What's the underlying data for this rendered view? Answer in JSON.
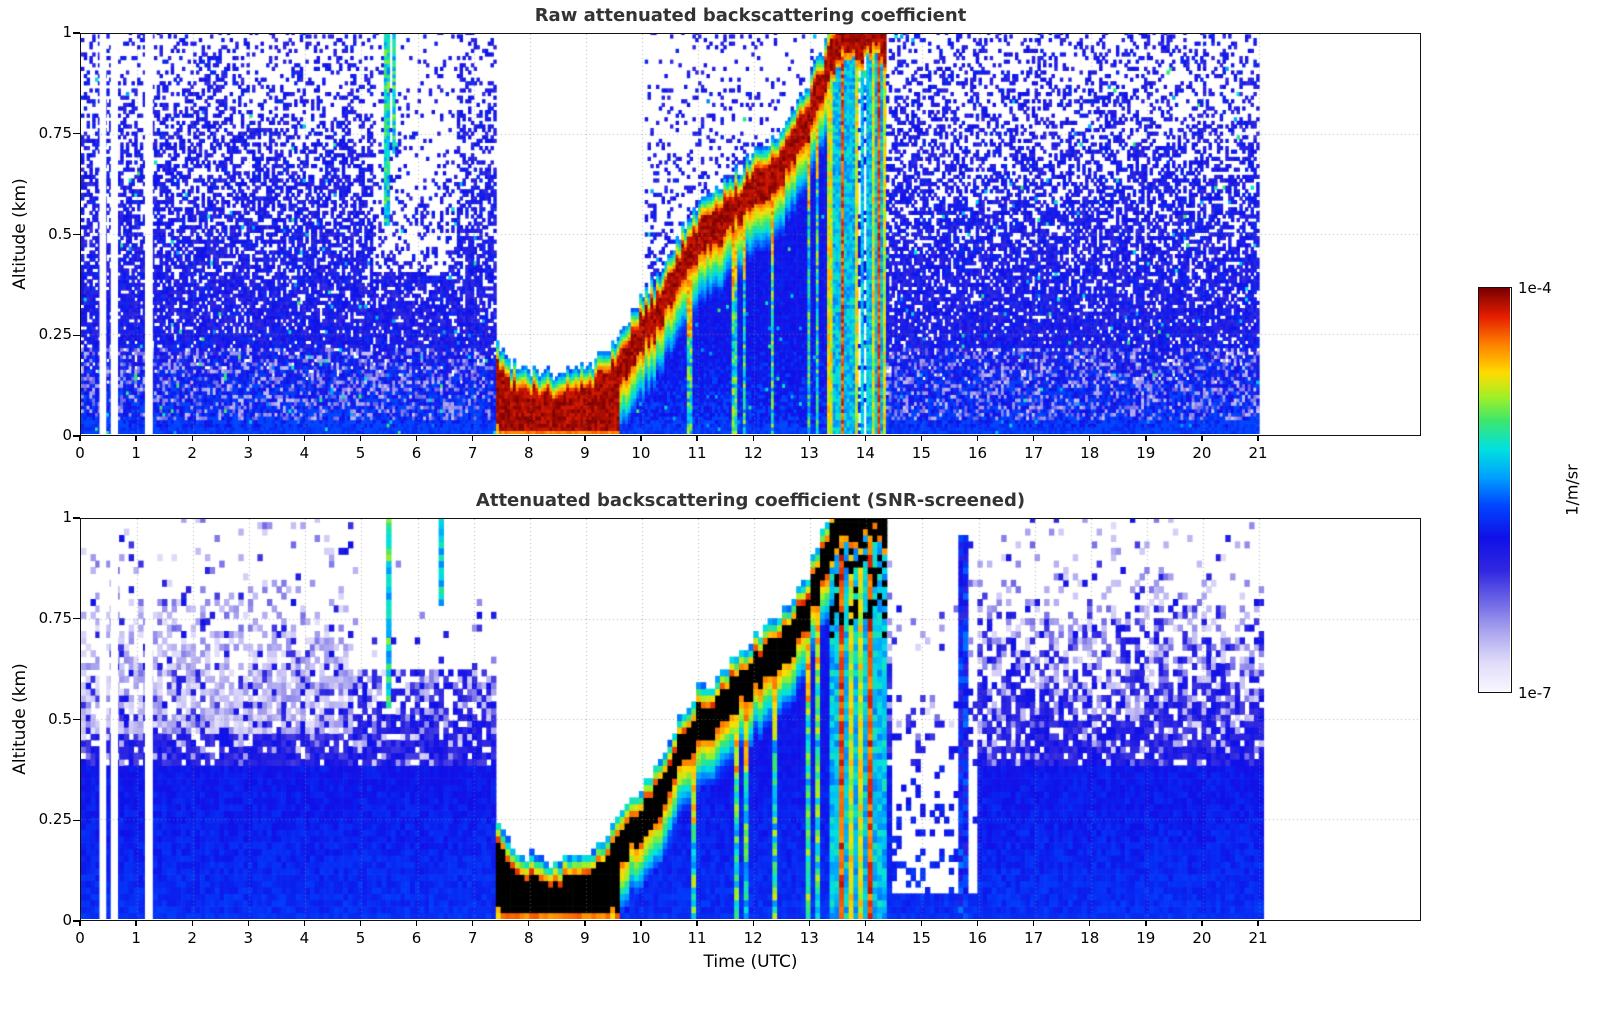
{
  "figure": {
    "background": "#ffffff"
  },
  "colorbar": {
    "max_label": "1e-4",
    "min_label": "1e-7",
    "units_label": "1/m/sr",
    "scale": "log"
  },
  "colormap_stops": [
    [
      0.0,
      "#f8f6ff"
    ],
    [
      0.07,
      "#e0dcfa"
    ],
    [
      0.14,
      "#b0aaf0"
    ],
    [
      0.22,
      "#7068e6"
    ],
    [
      0.3,
      "#3028e0"
    ],
    [
      0.38,
      "#1010e8"
    ],
    [
      0.46,
      "#0046ff"
    ],
    [
      0.53,
      "#00a0ff"
    ],
    [
      0.6,
      "#00e1e1"
    ],
    [
      0.67,
      "#3ce66e"
    ],
    [
      0.73,
      "#a0f028"
    ],
    [
      0.79,
      "#ffdc00"
    ],
    [
      0.86,
      "#ff8200"
    ],
    [
      0.93,
      "#e61e00"
    ],
    [
      1.0,
      "#7a0000"
    ]
  ],
  "chart_data": [
    {
      "type": "heatmap",
      "title": "Raw attenuated backscattering coefficient",
      "xlabel": "",
      "ylabel": "Altitude (km)",
      "x_ticks": [
        "0",
        "1",
        "2",
        "3",
        "4",
        "5",
        "6",
        "7",
        "8",
        "9",
        "10",
        "11",
        "12",
        "13",
        "14",
        "15",
        "16",
        "17",
        "18",
        "19",
        "20",
        "21"
      ],
      "y_ticks": [
        "0",
        "0.25",
        "0.5",
        "0.75",
        "1"
      ],
      "x_range_hours": [
        0,
        23.9
      ],
      "y_range_km": [
        0,
        1
      ],
      "value_scale": "log",
      "value_min": "1e-7",
      "value_max": "1e-4",
      "value_units": "1/m/sr",
      "grid": "dotted",
      "features": {
        "data_hours": 21,
        "gaps": [
          [
            0.33,
            0.45
          ],
          [
            0.53,
            0.66
          ],
          [
            1.14,
            1.28
          ]
        ],
        "cloud_path": [
          [
            7.35,
            0.16
          ],
          [
            7.6,
            0.1
          ],
          [
            8.0,
            0.075
          ],
          [
            8.5,
            0.065
          ],
          [
            9.0,
            0.09
          ],
          [
            9.4,
            0.14
          ],
          [
            9.8,
            0.22
          ],
          [
            10.2,
            0.3
          ],
          [
            10.6,
            0.4
          ],
          [
            11.0,
            0.5
          ],
          [
            11.3,
            0.52
          ],
          [
            11.6,
            0.57
          ],
          [
            12.0,
            0.62
          ],
          [
            12.3,
            0.66
          ],
          [
            12.6,
            0.7
          ],
          [
            12.9,
            0.78
          ],
          [
            13.1,
            0.85
          ],
          [
            13.35,
            0.95
          ],
          [
            13.6,
            1.02
          ],
          [
            13.85,
            0.99
          ],
          [
            14.1,
            1.04
          ],
          [
            14.35,
            0.97
          ]
        ],
        "cloud_time_range": [
          7.35,
          14.35
        ],
        "fog_until": 9.6,
        "full_attenuation_range": [
          7.35,
          10.05
        ],
        "precip_streaks": [
          {
            "t": 10.85,
            "w": 0.1
          },
          {
            "t": 11.62,
            "w": 0.08
          },
          {
            "t": 11.8,
            "w": 0.06
          },
          {
            "t": 12.32,
            "w": 0.05
          },
          {
            "t": 12.95,
            "w": 0.07
          },
          {
            "t": 13.12,
            "w": 0.06
          }
        ],
        "dense_band": [
          13.3,
          14.35
        ],
        "upper_streaks": [
          {
            "t": 5.42,
            "w": 0.09,
            "a0": 0.52
          },
          {
            "t": 5.56,
            "w": 0.05,
            "a0": 0.7
          }
        ]
      }
    },
    {
      "type": "heatmap",
      "title": "Attenuated backscattering coefficient (SNR-screened)",
      "xlabel": "Time (UTC)",
      "ylabel": "Altitude (km)",
      "x_ticks": [
        "0",
        "1",
        "2",
        "3",
        "4",
        "5",
        "6",
        "7",
        "8",
        "9",
        "10",
        "11",
        "12",
        "13",
        "14",
        "15",
        "16",
        "17",
        "18",
        "19",
        "20",
        "21"
      ],
      "y_ticks": [
        "0",
        "0.25",
        "0.5",
        "0.75",
        "1"
      ],
      "x_range_hours": [
        0,
        23.9
      ],
      "y_range_km": [
        0,
        1
      ],
      "value_scale": "log",
      "value_min": "1e-7",
      "value_max": "1e-4",
      "value_units": "1/m/sr",
      "grid": "dotted",
      "features": {
        "data_hours": 21,
        "gaps": [
          [
            0.33,
            0.45
          ],
          [
            0.53,
            0.66
          ],
          [
            1.14,
            1.28
          ]
        ],
        "cloud_path": [
          [
            7.35,
            0.16
          ],
          [
            7.6,
            0.1
          ],
          [
            8.0,
            0.075
          ],
          [
            8.5,
            0.065
          ],
          [
            9.0,
            0.09
          ],
          [
            9.4,
            0.14
          ],
          [
            9.8,
            0.22
          ],
          [
            10.2,
            0.3
          ],
          [
            10.6,
            0.4
          ],
          [
            11.0,
            0.5
          ],
          [
            11.3,
            0.52
          ],
          [
            11.6,
            0.57
          ],
          [
            12.0,
            0.62
          ],
          [
            12.3,
            0.66
          ],
          [
            12.6,
            0.7
          ],
          [
            12.9,
            0.78
          ],
          [
            13.1,
            0.85
          ],
          [
            13.35,
            0.95
          ],
          [
            13.6,
            1.02
          ],
          [
            13.85,
            0.99
          ],
          [
            14.1,
            1.04
          ],
          [
            14.35,
            0.97
          ]
        ],
        "cloud_time_range": [
          7.35,
          14.35
        ],
        "fog_until": 9.6,
        "full_attenuation_range": [
          7.35,
          10.05
        ],
        "precip_streaks": [
          {
            "t": 10.85,
            "w": 0.1
          },
          {
            "t": 11.62,
            "w": 0.08
          },
          {
            "t": 11.8,
            "w": 0.06
          },
          {
            "t": 12.32,
            "w": 0.05
          },
          {
            "t": 12.95,
            "w": 0.07
          },
          {
            "t": 13.12,
            "w": 0.06
          }
        ],
        "dense_band": [
          13.3,
          14.35
        ],
        "upper_streaks": [
          {
            "t": 5.42,
            "w": 0.09,
            "a0": 0.52
          },
          {
            "t": 5.56,
            "w": 0.05,
            "a0": 0.7
          },
          {
            "t": 6.36,
            "w": 0.11,
            "a0": 0.78
          }
        ],
        "post_gap": [
          14.4,
          15.9
        ],
        "post_streak": {
          "t": 15.7,
          "w": 0.14,
          "a1": 0.95
        },
        "early_light_band": {
          "t_max": 4.8,
          "a": [
            0.45,
            0.78
          ]
        }
      }
    }
  ]
}
